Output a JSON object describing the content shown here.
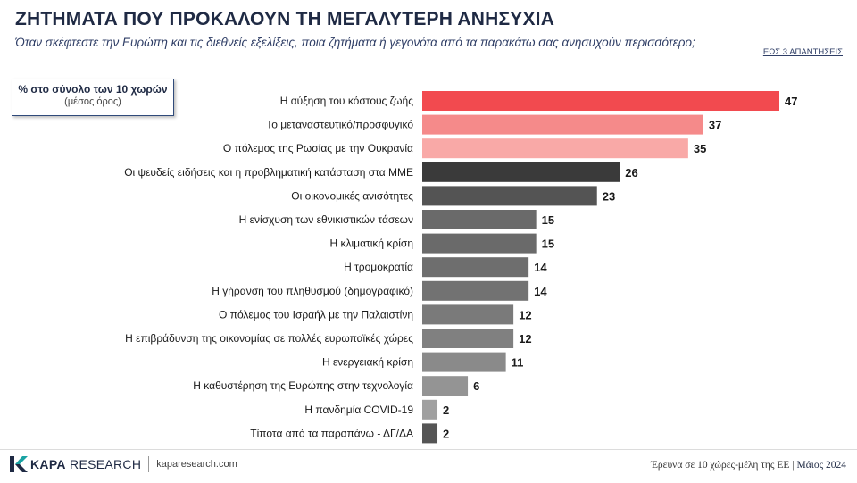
{
  "header": {
    "title": "ΖΗΤΗΜΑΤΑ ΠΟΥ ΠΡΟΚΑΛΟΥΝ ΤΗ ΜΕΓΑΛΥΤΕΡΗ ΑΝΗΣΥΧΙΑ",
    "subtitle": "Όταν σκέφτεστε την Ευρώπη και τις διεθνείς εξελίξεις, ποια ζητήματα ή γεγονότα από τα παρακάτω σας ανησυχούν περισσότερο;",
    "note": "ΕΩΣ 3 ΑΠΑΝΤΗΣΕΙΣ"
  },
  "legend": {
    "main": "% στο σύνολο των 10 χωρών",
    "sub": "(μέσος όρος)"
  },
  "footer": {
    "brand_bold": "KAPA",
    "brand_rest": "RESEARCH",
    "url": "kaparesearch.com",
    "survey": "Έρευνα σε 10 χώρες-μέλη της ΕΕ",
    "date": "Μάιος 2024"
  },
  "colors": {
    "bar_red": "#f24a4f",
    "bar_salmon": "#f58a8a",
    "bar_pink": "#f9a9a7",
    "bar_dark": "#3a3a3a",
    "bar_grey": "#6e6e6e",
    "bar_light": "#9a9a9a",
    "logo_teal": "#1aa3a3"
  },
  "chart_data": {
    "type": "bar",
    "orientation": "horizontal",
    "categories": [
      "Η αύξηση του κόστους ζωής",
      "Το μεταναστευτικό/προσφυγικό",
      "Ο πόλεμος της Ρωσίας με την Ουκρανία",
      "Οι ψευδείς ειδήσεις και η προβληματική κατάσταση στα ΜΜΕ",
      "Οι οικονομικές ανισότητες",
      "Η ενίσχυση των εθνικιστικών τάσεων",
      "Η κλιματική κρίση",
      "Η τρομοκρατία",
      "Η γήρανση του πληθυσμού (δημογραφικό)",
      "Ο πόλεμος του Ισραήλ με την Παλαιστίνη",
      "Η επιβράδυνση της οικονομίας σε πολλές ευρωπαϊκές χώρες",
      "Η ενεργειακή κρίση",
      "Η καθυστέρηση της Ευρώπης στην τεχνολογία",
      "Η πανδημία COVID-19",
      "Τίποτα από τα παραπάνω - ΔΓ/ΔΑ"
    ],
    "values": [
      47,
      37,
      35,
      26,
      23,
      15,
      15,
      14,
      14,
      12,
      12,
      11,
      6,
      2,
      2
    ],
    "bar_colors": [
      "#f24a4f",
      "#f58a8a",
      "#f9a9a7",
      "#3a3a3a",
      "#545454",
      "#6a6a6a",
      "#6a6a6a",
      "#6e6e6e",
      "#727272",
      "#7a7a7a",
      "#808080",
      "#8a8a8a",
      "#949494",
      "#a0a0a0",
      "#555555"
    ],
    "xlim": [
      0,
      47
    ],
    "grid": false,
    "unit": "%"
  }
}
